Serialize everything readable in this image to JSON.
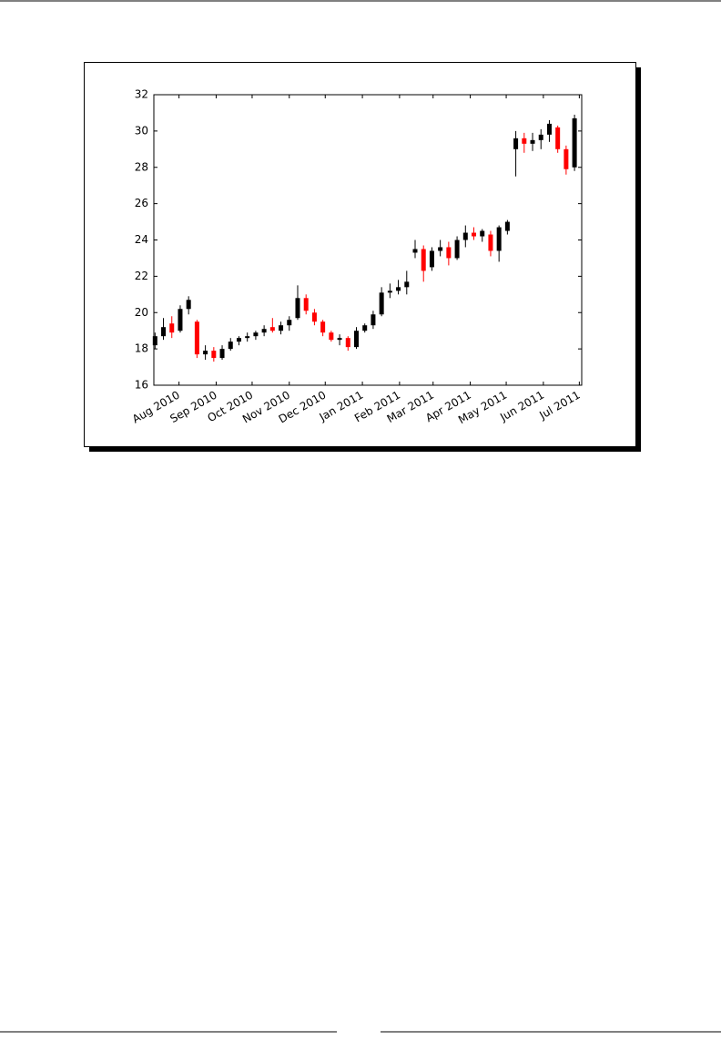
{
  "chart_data": {
    "type": "candlestick",
    "x": [
      "2010-07-12",
      "2010-07-19",
      "2010-07-26",
      "2010-08-02",
      "2010-08-09",
      "2010-08-16",
      "2010-08-23",
      "2010-08-30",
      "2010-09-06",
      "2010-09-13",
      "2010-09-20",
      "2010-09-27",
      "2010-10-04",
      "2010-10-11",
      "2010-10-18",
      "2010-10-25",
      "2010-11-01",
      "2010-11-08",
      "2010-11-15",
      "2010-11-22",
      "2010-11-29",
      "2010-12-06",
      "2010-12-13",
      "2010-12-20",
      "2010-12-27",
      "2011-01-03",
      "2011-01-10",
      "2011-01-17",
      "2011-01-24",
      "2011-01-31",
      "2011-02-07",
      "2011-02-14",
      "2011-02-21",
      "2011-02-28",
      "2011-03-07",
      "2011-03-14",
      "2011-03-21",
      "2011-03-28",
      "2011-04-04",
      "2011-04-11",
      "2011-04-18",
      "2011-04-25",
      "2011-05-02",
      "2011-05-09",
      "2011-05-16",
      "2011-05-23",
      "2011-05-30",
      "2011-06-06",
      "2011-06-13",
      "2011-06-20",
      "2011-06-27"
    ],
    "open": [
      18.2,
      18.7,
      19.4,
      19.0,
      20.2,
      19.5,
      17.7,
      17.9,
      17.5,
      18.0,
      18.4,
      18.6,
      18.7,
      18.9,
      19.2,
      19.0,
      19.3,
      19.7,
      20.8,
      20.0,
      19.5,
      18.9,
      18.5,
      18.6,
      18.1,
      19.0,
      19.3,
      19.9,
      21.1,
      21.2,
      21.4,
      23.3,
      23.5,
      22.5,
      23.4,
      23.6,
      23.0,
      24.0,
      24.4,
      24.2,
      24.3,
      23.4,
      24.5,
      29.0,
      29.6,
      29.3,
      29.5,
      29.8,
      30.2,
      29.0,
      28.0
    ],
    "high": [
      18.9,
      19.7,
      19.8,
      20.4,
      20.9,
      19.6,
      18.2,
      18.1,
      18.2,
      18.6,
      18.7,
      18.9,
      19.0,
      19.3,
      19.7,
      19.5,
      19.8,
      21.5,
      21.0,
      20.2,
      19.6,
      19.0,
      18.8,
      18.7,
      19.2,
      19.4,
      20.1,
      21.4,
      21.6,
      21.8,
      22.3,
      24.0,
      23.7,
      23.6,
      24.0,
      23.9,
      24.2,
      24.8,
      24.7,
      24.6,
      24.5,
      24.8,
      25.1,
      30.0,
      29.9,
      29.9,
      30.1,
      30.6,
      30.3,
      29.2,
      30.9
    ],
    "low": [
      18.0,
      18.5,
      18.6,
      18.9,
      19.9,
      17.5,
      17.4,
      17.3,
      17.4,
      17.9,
      18.2,
      18.4,
      18.5,
      18.7,
      18.9,
      18.8,
      19.0,
      19.6,
      19.9,
      19.3,
      18.7,
      18.4,
      18.2,
      17.9,
      18.0,
      18.9,
      19.1,
      19.8,
      20.8,
      21.0,
      21.0,
      23.0,
      21.7,
      22.3,
      23.1,
      22.6,
      22.9,
      23.6,
      24.0,
      23.9,
      23.1,
      22.8,
      24.3,
      27.5,
      28.8,
      28.9,
      29.0,
      29.4,
      28.8,
      27.6,
      27.8
    ],
    "close": [
      18.7,
      19.2,
      18.9,
      20.2,
      20.7,
      17.7,
      17.9,
      17.5,
      18.0,
      18.4,
      18.6,
      18.7,
      18.9,
      19.1,
      19.0,
      19.3,
      19.6,
      20.8,
      20.1,
      19.5,
      18.9,
      18.5,
      18.6,
      18.1,
      19.0,
      19.3,
      19.9,
      21.1,
      21.2,
      21.4,
      21.7,
      23.5,
      22.3,
      23.4,
      23.6,
      23.0,
      24.0,
      24.4,
      24.2,
      24.5,
      23.4,
      24.7,
      25.0,
      29.6,
      29.3,
      29.5,
      29.8,
      30.4,
      29.0,
      27.9,
      30.7
    ],
    "up_color": "#000000",
    "down_color": "#ff0000",
    "xlim": [
      "2010-07-11",
      "2011-07-03"
    ],
    "xticks": [
      {
        "value": "2010-08-01",
        "label": "Aug 2010"
      },
      {
        "value": "2010-09-01",
        "label": "Sep 2010"
      },
      {
        "value": "2010-10-01",
        "label": "Oct 2010"
      },
      {
        "value": "2010-11-01",
        "label": "Nov 2010"
      },
      {
        "value": "2010-12-01",
        "label": "Dec 2010"
      },
      {
        "value": "2011-01-01",
        "label": "Jan 2011"
      },
      {
        "value": "2011-02-01",
        "label": "Feb 2011"
      },
      {
        "value": "2011-03-01",
        "label": "Mar 2011"
      },
      {
        "value": "2011-04-01",
        "label": "Apr 2011"
      },
      {
        "value": "2011-05-01",
        "label": "May 2011"
      },
      {
        "value": "2011-06-01",
        "label": "Jun 2011"
      },
      {
        "value": "2011-07-01",
        "label": "Jul 2011"
      }
    ],
    "ylim": [
      16,
      32
    ],
    "yticks": [
      16,
      18,
      20,
      22,
      24,
      26,
      28,
      30,
      32
    ]
  }
}
